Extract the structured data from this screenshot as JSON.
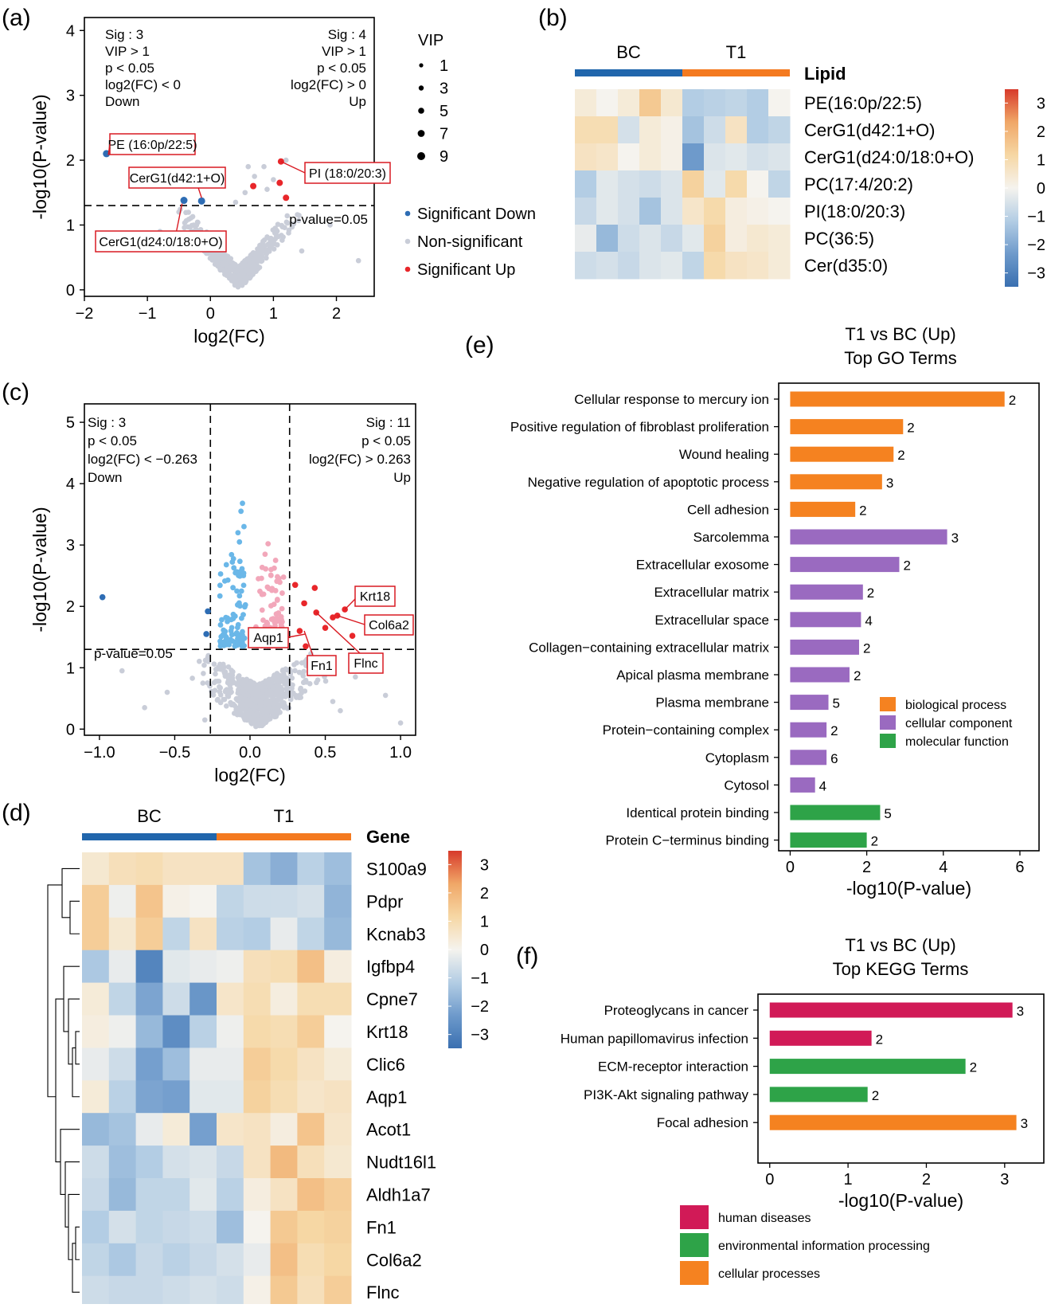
{
  "colors": {
    "sig_down": "#2E6DB4",
    "non_sig": "#C9CDD8",
    "sig_up": "#E8262A",
    "light_blue": "#6AB7E8",
    "light_pink": "#F2A7BA",
    "bc_bar": "#2166AC",
    "t1_bar": "#F47A20",
    "bio": "#F58220",
    "cell": "#9A6AC0",
    "mol": "#2EA348",
    "hum": "#D11A57",
    "env": "#2EA348",
    "cellproc": "#F58220",
    "box_red": "#D91A22"
  },
  "panels": {
    "a": "(a)",
    "b": "(b)",
    "c": "(c)",
    "d": "(d)",
    "e": "(e)",
    "f": "(f)"
  },
  "chart_data": [
    {
      "id": "a",
      "type": "scatter",
      "title": "",
      "xlabel": "log2(FC)",
      "ylabel": "-log10(P-value)",
      "xlim": [
        -2,
        2.6
      ],
      "ylim": [
        -0.1,
        4.2
      ],
      "xticks": [
        "-2",
        "-1",
        "0",
        "1",
        "2"
      ],
      "yticks": [
        "0",
        "1",
        "2",
        "3",
        "4"
      ],
      "threshold_label": "p-value=0.05",
      "threshold_y": 1.3,
      "left_text": [
        "Sig : 3",
        "VIP > 1",
        "p < 0.05",
        "log2(FC) < 0",
        "Down"
      ],
      "right_text": [
        "Sig : 4",
        "VIP > 1",
        "p < 0.05",
        "log2(FC) > 0",
        "Up"
      ],
      "vip_legend_title": "VIP",
      "vip_legend": [
        "1",
        "3",
        "5",
        "7",
        "9"
      ],
      "legend": [
        "Significant Down",
        "Non-significant",
        "Significant Up"
      ],
      "down_points": [
        [
          -1.65,
          2.1
        ],
        [
          -0.42,
          1.38
        ],
        [
          -0.14,
          1.37
        ]
      ],
      "up_points": [
        [
          0.68,
          1.6
        ],
        [
          1.1,
          1.65
        ],
        [
          1.12,
          1.98
        ],
        [
          1.2,
          1.42
        ]
      ],
      "annotations": [
        "PE (16:0p/22:5)",
        "CerG1(d42:1+O)",
        "CerG1(d24:0/18:0+O)",
        "PI (18:0/20:3)"
      ]
    },
    {
      "id": "b",
      "type": "heatmap",
      "groups": [
        "BC",
        "T1"
      ],
      "row_header": "Lipid",
      "rows": [
        "PE(16:0p/22:5)",
        "CerG1(d42:1+O)",
        "CerG1(d24:0/18:0+O)",
        "PC(17:4/20:2)",
        "PI(18:0/20:3)",
        "PC(36:5)",
        "Cer(d35:0)"
      ],
      "values": [
        [
          0.3,
          0.0,
          0.3,
          1.3,
          0.4,
          -1.0,
          -0.9,
          -0.8,
          -1.0,
          0.0
        ],
        [
          0.8,
          0.8,
          -0.5,
          0.3,
          0.1,
          -1.2,
          -0.6,
          0.6,
          -1.0,
          -0.8
        ],
        [
          0.6,
          0.5,
          0.0,
          0.3,
          0.1,
          -2.0,
          -0.4,
          -0.3,
          -0.5,
          -0.4
        ],
        [
          -1.0,
          -0.3,
          -0.5,
          -0.6,
          -0.4,
          1.1,
          -0.3,
          0.9,
          0.0,
          -0.8
        ],
        [
          -0.7,
          -0.3,
          -0.5,
          -1.2,
          -0.4,
          0.5,
          0.9,
          0.2,
          0.1,
          0.0
        ],
        [
          -0.2,
          -1.4,
          -0.6,
          -0.4,
          -0.7,
          -0.3,
          1.1,
          0.2,
          0.4,
          0.3
        ],
        [
          -0.6,
          -0.5,
          -0.7,
          -0.4,
          -0.3,
          -0.8,
          0.9,
          0.6,
          0.5,
          0.3
        ]
      ],
      "colorbar_ticks": [
        "3",
        "2",
        "1",
        "0",
        "−1",
        "−2",
        "−3"
      ]
    },
    {
      "id": "c",
      "type": "scatter",
      "title": "",
      "xlabel": "log2(FC)",
      "ylabel": "-log10(P-value)",
      "xlim": [
        -1.1,
        1.1
      ],
      "ylim": [
        -0.1,
        5.3
      ],
      "xticks": [
        "-1.0",
        "-0.5",
        "0.0",
        "0.5",
        "1.0"
      ],
      "yticks": [
        "0",
        "1",
        "2",
        "3",
        "4",
        "5"
      ],
      "threshold_label": "p-value=0.05",
      "threshold_y": 1.3,
      "fc_threshold": 0.263,
      "left_text": [
        "Sig : 3",
        "p < 0.05",
        "log2(FC) < −0.263",
        "Down"
      ],
      "right_text": [
        "Sig : 11",
        "p < 0.05",
        "log2(FC) > 0.263",
        "Up"
      ],
      "down_points": [
        [
          -0.98,
          2.15
        ],
        [
          -0.28,
          1.92
        ],
        [
          -0.29,
          1.55
        ]
      ],
      "up_points": [
        [
          0.3,
          2.35
        ],
        [
          0.36,
          2.05
        ],
        [
          0.33,
          1.6
        ],
        [
          0.43,
          2.3
        ],
        [
          0.44,
          1.9
        ],
        [
          0.5,
          1.65
        ],
        [
          0.55,
          1.82
        ],
        [
          0.58,
          1.85
        ],
        [
          0.63,
          1.95
        ],
        [
          0.68,
          1.52
        ],
        [
          0.37,
          1.35
        ]
      ],
      "annotations": [
        "Krt18",
        "Col6a2",
        "Aqp1",
        "Fn1",
        "Flnc"
      ]
    },
    {
      "id": "d",
      "type": "heatmap",
      "groups": [
        "BC",
        "T1"
      ],
      "row_header": "Gene",
      "rows": [
        "S100a9",
        "Pdpr",
        "Kcnab3",
        "Igfbp4",
        "Cpne7",
        "Krt18",
        "Clic6",
        "Aqp1",
        "Acot1",
        "Nudt16l1",
        "Aldh1a7",
        "Fn1",
        "Col6a2",
        "Flnc"
      ],
      "values": [
        [
          0.4,
          0.7,
          0.8,
          0.6,
          0.6,
          0.6,
          -1.2,
          -1.6,
          -0.9,
          -1.3
        ],
        [
          1.2,
          -0.1,
          1.4,
          0.1,
          0.0,
          -0.8,
          -0.6,
          -0.6,
          -0.5,
          -1.5
        ],
        [
          1.2,
          0.4,
          1.2,
          -0.8,
          0.6,
          -0.9,
          -1.0,
          -0.2,
          -0.8,
          -1.4
        ],
        [
          -1.1,
          -0.2,
          -2.5,
          -0.3,
          -0.2,
          -0.1,
          0.7,
          0.8,
          1.5,
          0.2
        ],
        [
          0.3,
          -0.8,
          -1.8,
          -0.6,
          -2.1,
          0.5,
          0.8,
          0.2,
          0.8,
          0.8
        ],
        [
          0.2,
          -0.1,
          -1.4,
          -2.3,
          -0.9,
          -0.1,
          0.9,
          0.8,
          1.2,
          0.0
        ],
        [
          -0.2,
          -0.6,
          -1.9,
          -1.3,
          -0.2,
          -0.2,
          1.2,
          0.9,
          0.6,
          0.3
        ],
        [
          0.3,
          -0.9,
          -1.8,
          -1.9,
          -0.3,
          -0.3,
          1.1,
          0.8,
          0.5,
          0.6
        ],
        [
          -1.4,
          -1.2,
          -0.2,
          0.3,
          -1.9,
          0.5,
          0.6,
          0.2,
          1.4,
          0.5
        ],
        [
          -0.6,
          -1.3,
          -1.0,
          -0.5,
          -0.4,
          -0.7,
          0.6,
          1.6,
          0.7,
          0.4
        ],
        [
          -0.7,
          -1.4,
          -0.8,
          -0.8,
          -0.3,
          -0.9,
          0.2,
          0.6,
          1.5,
          1.2
        ],
        [
          -1.0,
          -0.5,
          -0.8,
          -0.7,
          -0.6,
          -1.3,
          0.0,
          1.3,
          1.0,
          1.1
        ],
        [
          -0.8,
          -1.1,
          -0.7,
          -0.9,
          -0.7,
          -0.5,
          -0.2,
          1.5,
          0.8,
          1.0
        ],
        [
          -0.6,
          -0.7,
          -0.7,
          -0.6,
          -0.5,
          -0.6,
          0.1,
          1.3,
          0.7,
          1.2
        ]
      ],
      "colorbar_ticks": [
        "3",
        "2",
        "1",
        "0",
        "−1",
        "−2",
        "−3"
      ]
    },
    {
      "id": "e",
      "type": "bar",
      "orientation": "horizontal",
      "title": [
        "T1 vs BC (Up)",
        "Top GO Terms"
      ],
      "xlabel": "-log10(P-value)",
      "xlim": [
        -0.3,
        6.5
      ],
      "xticks": [
        "0",
        "2",
        "4",
        "6"
      ],
      "categories": [
        "Cellular response to mercury ion",
        "Positive regulation of fibroblast proliferation",
        "Wound healing",
        "Negative regulation of apoptotic process",
        "Cell adhesion",
        "Sarcolemma",
        "Extracellular exosome",
        "Extracellular matrix",
        "Extracellular space",
        "Collagen−containing extracellular matrix",
        "Apical plasma membrane",
        "Plasma membrane",
        "Protein−containing complex",
        "Cytoplasm",
        "Cytosol",
        "Identical protein binding",
        "Protein C−terminus binding"
      ],
      "values": [
        5.6,
        2.95,
        2.7,
        2.4,
        1.7,
        4.1,
        2.85,
        1.9,
        1.85,
        1.8,
        1.55,
        1.0,
        0.95,
        0.95,
        0.65,
        2.35,
        2.0
      ],
      "counts": [
        "2",
        "2",
        "2",
        "3",
        "2",
        "3",
        "2",
        "2",
        "4",
        "2",
        "2",
        "5",
        "2",
        "6",
        "4",
        "5",
        "2"
      ],
      "group": [
        "bio",
        "bio",
        "bio",
        "bio",
        "bio",
        "cell",
        "cell",
        "cell",
        "cell",
        "cell",
        "cell",
        "cell",
        "cell",
        "cell",
        "cell",
        "mol",
        "mol"
      ],
      "legend": [
        "biological process",
        "cellular component",
        "molecular function"
      ]
    },
    {
      "id": "f",
      "type": "bar",
      "orientation": "horizontal",
      "title": [
        "T1 vs BC (Up)",
        "Top KEGG Terms"
      ],
      "xlabel": "-log10(P-value)",
      "xlim": [
        -0.15,
        3.5
      ],
      "xticks": [
        "0",
        "1",
        "2",
        "3"
      ],
      "categories": [
        "Proteoglycans in cancer",
        "Human papillomavirus infection",
        "ECM-receptor interaction",
        "PI3K-Akt signaling pathway",
        "Focal adhesion"
      ],
      "values": [
        3.1,
        1.3,
        2.5,
        1.25,
        3.15
      ],
      "counts": [
        "3",
        "2",
        "2",
        "2",
        "3"
      ],
      "group": [
        "hum",
        "hum",
        "env",
        "env",
        "cellproc"
      ],
      "legend": [
        "human diseases",
        "environmental information processing",
        "cellular processes"
      ]
    }
  ]
}
